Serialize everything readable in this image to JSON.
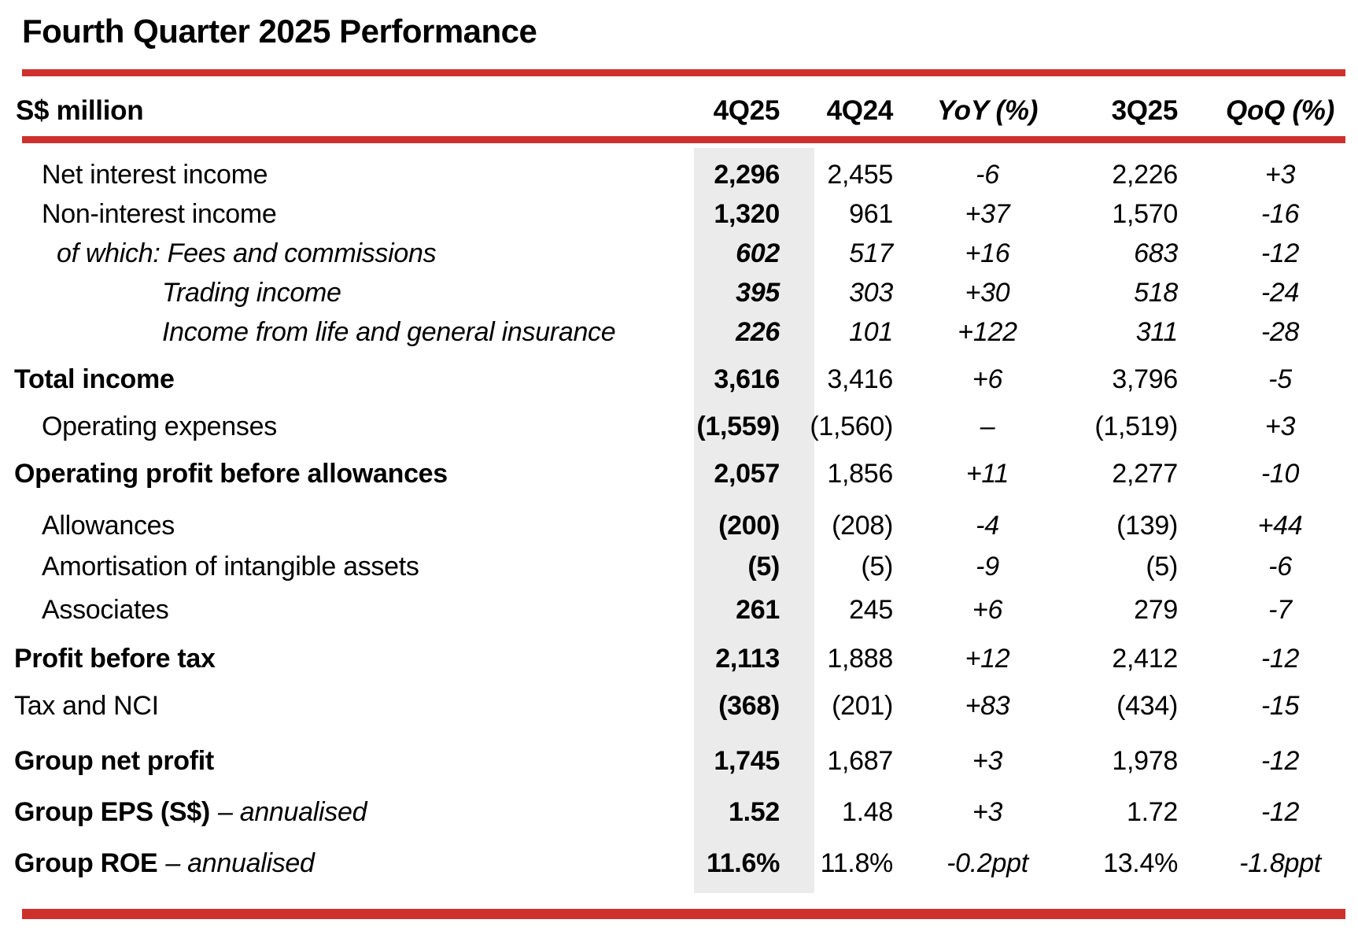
{
  "title": "Fourth Quarter 2025 Performance",
  "colors": {
    "accent_red": "#CE312D",
    "highlight_gray": "#EBEBEB",
    "text": "#000000"
  },
  "table": {
    "unit_header": "S$ million",
    "columns": [
      "4Q25",
      "4Q24",
      "YoY (%)",
      "3Q25",
      "QoQ (%)"
    ],
    "rows": [
      {
        "label": "Net interest income",
        "suffix": "",
        "indent": 1,
        "label_style": "regular",
        "value_style": "regular",
        "gap": 0,
        "values": [
          "2,296",
          "2,455",
          "-6",
          "2,226",
          "+3"
        ]
      },
      {
        "label": "Non-interest income",
        "suffix": "",
        "indent": 1,
        "label_style": "regular",
        "value_style": "regular",
        "gap": 0,
        "values": [
          "1,320",
          "961",
          "+37",
          "1,570",
          "-16"
        ]
      },
      {
        "label": "of which: Fees and commissions",
        "suffix": "",
        "indent": 2,
        "label_style": "italic",
        "value_style": "italic",
        "gap": 0,
        "values": [
          "602",
          "517",
          "+16",
          "683",
          "-12"
        ]
      },
      {
        "label": "Trading income",
        "suffix": "",
        "indent": 3,
        "label_style": "italic",
        "value_style": "italic",
        "gap": 0,
        "values": [
          "395",
          "303",
          "+30",
          "518",
          "-24"
        ]
      },
      {
        "label": "Income from life and general insurance",
        "suffix": "",
        "indent": 3,
        "label_style": "italic",
        "value_style": "italic",
        "gap": 0,
        "values": [
          "226",
          "101",
          "+122",
          "311",
          "-28"
        ]
      },
      {
        "label": "Total income",
        "suffix": "",
        "indent": 0,
        "label_style": "bold",
        "value_style": "regular",
        "gap": 10,
        "values": [
          "3,616",
          "3,416",
          "+6",
          "3,796",
          "-5"
        ]
      },
      {
        "label": "Operating expenses",
        "suffix": "",
        "indent": 1,
        "label_style": "regular",
        "value_style": "regular",
        "gap": 10,
        "values": [
          "(1,559)",
          "(1,560)",
          "–",
          "(1,519)",
          "+3"
        ]
      },
      {
        "label": "Operating profit before allowances",
        "suffix": "",
        "indent": 0,
        "label_style": "bold",
        "value_style": "regular",
        "gap": 10,
        "values": [
          "2,057",
          "1,856",
          "+11",
          "2,277",
          "-10"
        ]
      },
      {
        "label": "Allowances",
        "suffix": "",
        "indent": 1,
        "label_style": "regular",
        "value_style": "regular",
        "gap": 16,
        "values": [
          "(200)",
          "(208)",
          "-4",
          "(139)",
          "+44"
        ]
      },
      {
        "label": "Amortisation of intangible assets",
        "suffix": "",
        "indent": 1,
        "label_style": "regular",
        "value_style": "regular",
        "gap": 2,
        "values": [
          "(5)",
          "(5)",
          "-9",
          "(5)",
          "-6"
        ]
      },
      {
        "label": "Associates",
        "suffix": "",
        "indent": 1,
        "label_style": "regular",
        "value_style": "regular",
        "gap": 5,
        "values": [
          "261",
          "245",
          "+6",
          "279",
          "-7"
        ]
      },
      {
        "label": "Profit before tax",
        "suffix": "",
        "indent": 0,
        "label_style": "bold",
        "value_style": "regular",
        "gap": 12,
        "values": [
          "2,113",
          "1,888",
          "+12",
          "2,412",
          "-12"
        ]
      },
      {
        "label": "Tax and NCI",
        "suffix": "",
        "indent": 0,
        "label_style": "regular",
        "value_style": "regular",
        "gap": 10,
        "values": [
          "(368)",
          "(201)",
          "+83",
          "(434)",
          "-15"
        ]
      },
      {
        "label": "Group net profit",
        "suffix": "",
        "indent": 0,
        "label_style": "bold",
        "value_style": "regular",
        "gap": 20,
        "values": [
          "1,745",
          "1,687",
          "+3",
          "1,978",
          "-12"
        ]
      },
      {
        "label": "Group EPS (S$)",
        "suffix": "– annualised",
        "indent": 0,
        "label_style": "bold",
        "value_style": "regular",
        "gap": 15,
        "values": [
          "1.52",
          "1.48",
          "+3",
          "1.72",
          "-12"
        ]
      },
      {
        "label": "Group ROE",
        "suffix": "– annualised",
        "indent": 0,
        "label_style": "bold",
        "value_style": "regular",
        "gap": 15,
        "values": [
          "11.6%",
          "11.8%",
          "-0.2ppt",
          "13.4%",
          "-1.8ppt"
        ]
      }
    ]
  }
}
